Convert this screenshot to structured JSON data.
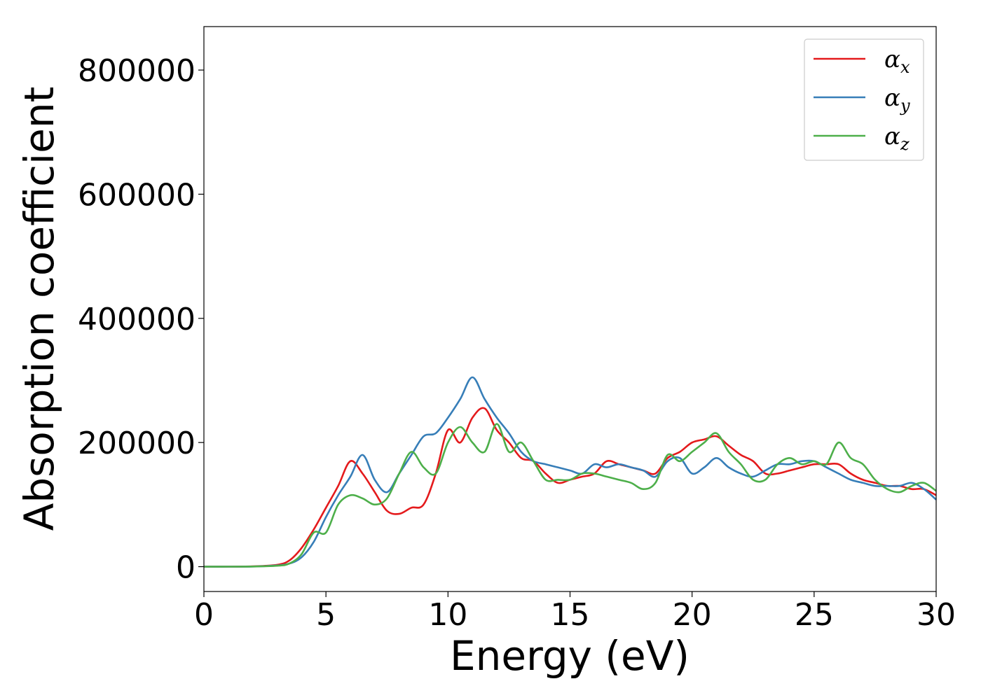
{
  "chart_data": {
    "type": "line",
    "xlabel": "Energy (eV)",
    "ylabel": "Absorption coefficient",
    "xlim": [
      0,
      30
    ],
    "ylim": [
      -40000,
      870000
    ],
    "xticks": [
      0,
      5,
      10,
      15,
      20,
      25,
      30
    ],
    "yticks": [
      0,
      200000,
      400000,
      600000,
      800000
    ],
    "grid": false,
    "legend_position": "top-right",
    "series": [
      {
        "name": "αx",
        "symbol": "α",
        "subscript": "x",
        "color": "#e41a1c",
        "x": [
          0,
          1,
          2,
          3,
          3.5,
          4,
          4.5,
          5,
          5.5,
          6,
          6.5,
          7,
          7.5,
          8,
          8.5,
          9,
          9.5,
          10,
          10.5,
          11,
          11.5,
          12,
          12.5,
          13,
          13.5,
          14,
          14.5,
          15,
          15.5,
          16,
          16.5,
          17,
          17.5,
          18,
          18.5,
          19,
          19.5,
          20,
          20.5,
          21,
          21.5,
          22,
          22.5,
          23,
          23.5,
          24,
          24.5,
          25,
          25.5,
          26,
          26.5,
          27,
          27.5,
          28,
          28.5,
          29,
          29.5,
          30
        ],
        "y": [
          0,
          0,
          500,
          3000,
          10000,
          30000,
          60000,
          95000,
          130000,
          170000,
          150000,
          120000,
          90000,
          85000,
          95000,
          100000,
          150000,
          220000,
          200000,
          240000,
          255000,
          220000,
          200000,
          175000,
          170000,
          150000,
          135000,
          140000,
          145000,
          150000,
          170000,
          165000,
          160000,
          155000,
          150000,
          175000,
          185000,
          200000,
          205000,
          210000,
          195000,
          180000,
          170000,
          150000,
          150000,
          155000,
          160000,
          165000,
          165000,
          165000,
          150000,
          140000,
          135000,
          130000,
          130000,
          125000,
          125000,
          115000
        ]
      },
      {
        "name": "αy",
        "symbol": "α",
        "subscript": "y",
        "color": "#377eb8",
        "x": [
          0,
          1,
          2,
          3,
          3.5,
          4,
          4.5,
          5,
          5.5,
          6,
          6.5,
          7,
          7.5,
          8,
          8.5,
          9,
          9.5,
          10,
          10.5,
          11,
          11.5,
          12,
          12.5,
          13,
          13.5,
          14,
          14.5,
          15,
          15.5,
          16,
          16.5,
          17,
          17.5,
          18,
          18.5,
          19,
          19.5,
          20,
          20.5,
          21,
          21.5,
          22,
          22.5,
          23,
          23.5,
          24,
          24.5,
          25,
          25.5,
          26,
          26.5,
          27,
          27.5,
          28,
          28.5,
          29,
          29.5,
          30
        ],
        "y": [
          0,
          0,
          300,
          2000,
          5000,
          15000,
          40000,
          80000,
          115000,
          145000,
          180000,
          140000,
          120000,
          150000,
          180000,
          210000,
          215000,
          240000,
          270000,
          305000,
          270000,
          240000,
          215000,
          185000,
          170000,
          165000,
          160000,
          155000,
          150000,
          165000,
          160000,
          165000,
          160000,
          155000,
          145000,
          170000,
          175000,
          150000,
          160000,
          175000,
          160000,
          150000,
          145000,
          155000,
          165000,
          165000,
          170000,
          170000,
          160000,
          150000,
          140000,
          135000,
          130000,
          130000,
          130000,
          135000,
          125000,
          108000
        ]
      },
      {
        "name": "αz",
        "symbol": "α",
        "subscript": "z",
        "color": "#4daf4a",
        "x": [
          0,
          1,
          2,
          3,
          3.5,
          4,
          4.5,
          5,
          5.5,
          6,
          6.5,
          7,
          7.5,
          8,
          8.5,
          9,
          9.5,
          10,
          10.5,
          11,
          11.5,
          12,
          12.5,
          13,
          13.5,
          14,
          14.5,
          15,
          15.5,
          16,
          16.5,
          17,
          17.5,
          18,
          18.5,
          19,
          19.5,
          20,
          20.5,
          21,
          21.5,
          22,
          22.5,
          23,
          23.5,
          24,
          24.5,
          25,
          25.5,
          26,
          26.5,
          27,
          27.5,
          28,
          28.5,
          29,
          29.5,
          30
        ],
        "y": [
          0,
          0,
          300,
          1500,
          5000,
          20000,
          55000,
          55000,
          100000,
          115000,
          110000,
          100000,
          110000,
          150000,
          185000,
          160000,
          150000,
          200000,
          225000,
          200000,
          185000,
          230000,
          185000,
          200000,
          170000,
          140000,
          140000,
          140000,
          150000,
          150000,
          145000,
          140000,
          135000,
          125000,
          135000,
          180000,
          170000,
          185000,
          200000,
          215000,
          185000,
          165000,
          140000,
          140000,
          165000,
          175000,
          165000,
          170000,
          165000,
          200000,
          175000,
          165000,
          140000,
          125000,
          120000,
          130000,
          135000,
          122000
        ]
      }
    ]
  }
}
